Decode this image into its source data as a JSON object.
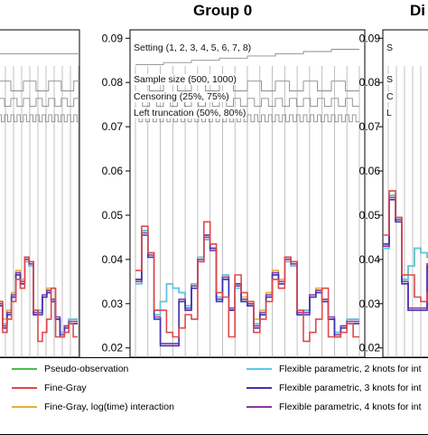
{
  "chart_data": {
    "type": "line",
    "title": "Group 0",
    "partial_right_title": "Di",
    "yticks": [
      "0.09",
      "0.08",
      "0.07",
      "0.06",
      "0.05",
      "0.04",
      "0.03",
      "0.02"
    ],
    "ylim": [
      0.018,
      0.092
    ],
    "grid": "vertical lines at each scenario",
    "scenario_factors": [
      {
        "label": "Setting (1, 2, 3, 4, 5, 6, 7, 8)",
        "level": 0.0875
      },
      {
        "label": "Sample size (500, 1000)",
        "level": 0.0803
      },
      {
        "label": "Censoring (25%, 75%)",
        "level": 0.0764
      },
      {
        "label": "Left truncation (50%, 80%)",
        "level": 0.0727
      }
    ],
    "series": [
      {
        "name": "Pseudo-observation",
        "color": "#4dbd4d",
        "values": [
          0.0345,
          0.0465,
          0.0415,
          0.0275,
          0.0305,
          0.0345,
          0.0335,
          0.0325,
          0.0295,
          0.0345,
          0.0405,
          0.0445,
          0.0425,
          0.0315,
          0.0365,
          0.0285,
          0.0335,
          0.0305,
          0.0295,
          0.0255,
          0.0275,
          0.0315,
          0.0365,
          0.0345,
          0.0395,
          0.0385,
          0.0275,
          0.0285,
          0.0315,
          0.0325,
          0.0305,
          0.0265,
          0.0235,
          0.0245,
          0.0265,
          0.0265
        ]
      },
      {
        "name": "Fine-Gray",
        "color": "#e0484a",
        "values": [
          0.0375,
          0.0475,
          0.0415,
          0.0285,
          0.0285,
          0.0235,
          0.0225,
          0.0245,
          0.0275,
          0.0265,
          0.0395,
          0.0485,
          0.0435,
          0.0325,
          0.0315,
          0.0225,
          0.0365,
          0.0325,
          0.0305,
          0.0235,
          0.0265,
          0.0305,
          0.0355,
          0.0335,
          0.0405,
          0.0395,
          0.0285,
          0.0215,
          0.0235,
          0.0265,
          0.0335,
          0.0225,
          0.0225,
          0.0235,
          0.0255,
          0.0225
        ]
      },
      {
        "name": "Fine-Gray, log(time) interaction",
        "color": "#e0b23c",
        "values": [
          0.0355,
          0.0465,
          0.0415,
          0.0285,
          0.0305,
          0.0345,
          0.0335,
          0.0325,
          0.0295,
          0.0345,
          0.0405,
          0.0455,
          0.0425,
          0.0315,
          0.0355,
          0.0285,
          0.0345,
          0.0315,
          0.0305,
          0.0265,
          0.0285,
          0.0325,
          0.0375,
          0.0355,
          0.0405,
          0.0385,
          0.0275,
          0.0285,
          0.0315,
          0.0335,
          0.0305,
          0.0265,
          0.0235,
          0.0245,
          0.0265,
          0.0265
        ]
      },
      {
        "name": "Flexible parametric, 2 knots for int",
        "color": "#5ec8e8",
        "values": [
          0.0345,
          0.0465,
          0.0415,
          0.0275,
          0.0305,
          0.0345,
          0.0335,
          0.0325,
          0.0295,
          0.0345,
          0.0405,
          0.0445,
          0.0425,
          0.0315,
          0.0365,
          0.0285,
          0.0335,
          0.0305,
          0.0295,
          0.0255,
          0.0275,
          0.0315,
          0.0365,
          0.0345,
          0.0395,
          0.0385,
          0.0275,
          0.0285,
          0.0315,
          0.0325,
          0.0305,
          0.0265,
          0.0235,
          0.0245,
          0.0265,
          0.0265
        ]
      },
      {
        "name": "Flexible parametric, 3 knots for int",
        "color": "#4132b4",
        "values": [
          0.0355,
          0.0455,
          0.0405,
          0.0265,
          0.0205,
          0.0205,
          0.0205,
          0.0305,
          0.0285,
          0.0335,
          0.0395,
          0.0455,
          0.0425,
          0.0305,
          0.0355,
          0.0285,
          0.0345,
          0.0305,
          0.0295,
          0.0245,
          0.0275,
          0.0315,
          0.0365,
          0.0345,
          0.0405,
          0.0395,
          0.0275,
          0.0275,
          0.0315,
          0.0325,
          0.0305,
          0.0265,
          0.0225,
          0.0245,
          0.0255,
          0.0255
        ]
      },
      {
        "name": "Flexible parametric, 4 knots for int",
        "color": "#8a3a9c",
        "values": [
          0.035,
          0.046,
          0.041,
          0.027,
          0.021,
          0.021,
          0.021,
          0.031,
          0.029,
          0.034,
          0.04,
          0.045,
          0.042,
          0.031,
          0.036,
          0.029,
          0.034,
          0.031,
          0.03,
          0.025,
          0.028,
          0.032,
          0.037,
          0.035,
          0.04,
          0.039,
          0.028,
          0.028,
          0.032,
          0.033,
          0.031,
          0.027,
          0.023,
          0.025,
          0.026,
          0.026
        ]
      }
    ]
  },
  "legend": [
    {
      "label": "Pseudo-observation",
      "color": "#4dbd4d"
    },
    {
      "label": "Fine-Gray",
      "color": "#e0484a"
    },
    {
      "label": "Fine-Gray, log(time) interaction",
      "color": "#e0b23c"
    },
    {
      "label": "Flexible parametric, 2 knots for int",
      "color": "#5ec8e8"
    },
    {
      "label": "Flexible parametric, 3 knots for int",
      "color": "#4132b4"
    },
    {
      "label": "Flexible parametric, 4 knots for int",
      "color": "#8a3a9c"
    }
  ]
}
